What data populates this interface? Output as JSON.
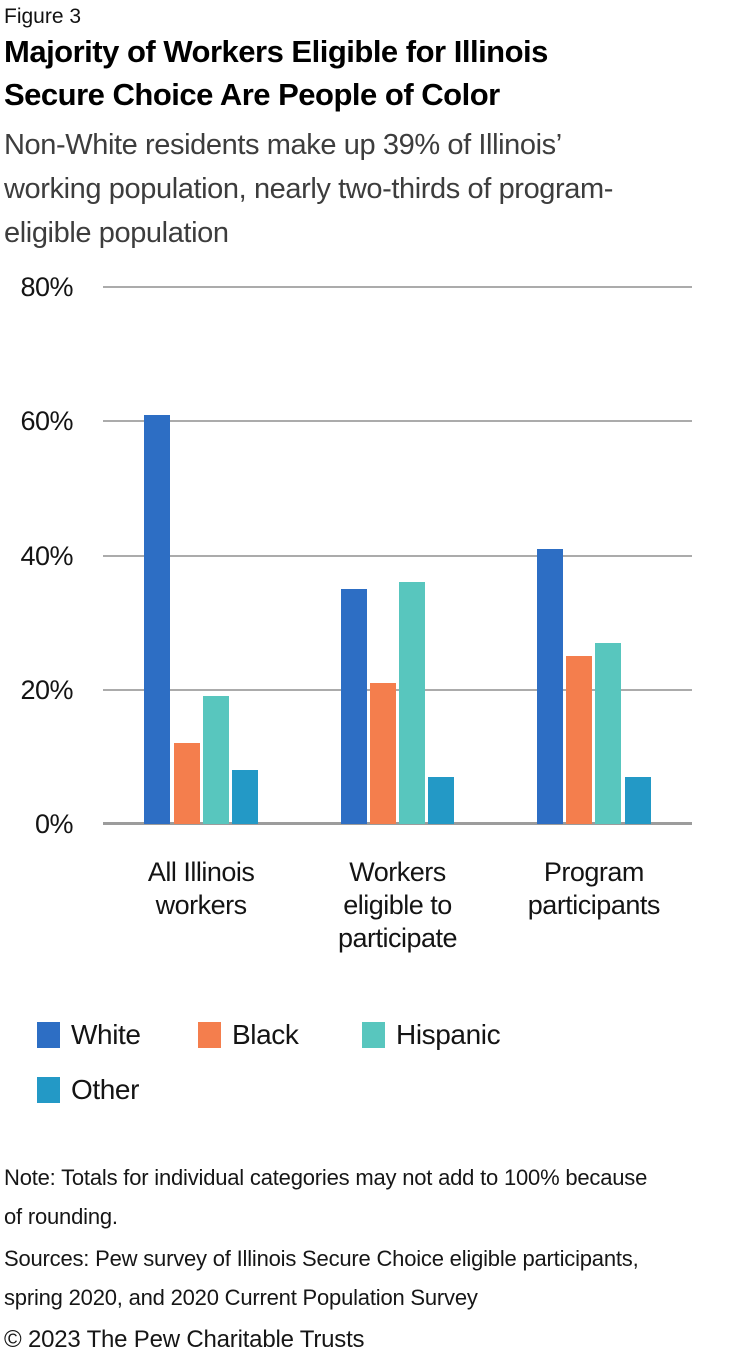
{
  "header": {
    "figure_label": "Figure 3",
    "title_lines": [
      "Majority of Workers Eligible for Illinois",
      "Secure Choice Are People of Color"
    ],
    "subtitle_lines": [
      "Non-White residents make up 39% of Illinois’",
      "working population, nearly two-thirds of program-",
      "eligible population"
    ]
  },
  "chart_data": {
    "type": "bar",
    "categories": [
      "All Illinois workers",
      "Workers eligible to participate",
      "Program participants"
    ],
    "category_label_lines": [
      [
        "All Illinois",
        "workers"
      ],
      [
        "Workers",
        "eligible to",
        "participate"
      ],
      [
        "Program",
        "participants"
      ]
    ],
    "series": [
      {
        "name": "White",
        "color": "#2d6ec4",
        "values": [
          61,
          35,
          41
        ]
      },
      {
        "name": "Black",
        "color": "#f47e4d",
        "values": [
          12,
          21,
          25
        ]
      },
      {
        "name": "Hispanic",
        "color": "#58c6be",
        "values": [
          19,
          36,
          27
        ]
      },
      {
        "name": "Other",
        "color": "#2399c6",
        "values": [
          8,
          7,
          7
        ]
      }
    ],
    "value_unit": "%",
    "y_axis": {
      "tick_labels": [
        "80%",
        "60%",
        "40%",
        "20%",
        "0%"
      ],
      "tick_values": [
        80,
        60,
        40,
        20,
        0
      ],
      "max": 80
    },
    "ylim": [
      0,
      80
    ],
    "grid": "horizontal",
    "grid_color": "#ababab",
    "baseline_color": "#9c9c9c",
    "legend_position": "bottom-left"
  },
  "legend": {
    "items": [
      {
        "label": "White",
        "color": "#2d6ec4"
      },
      {
        "label": "Black",
        "color": "#f47e4d"
      },
      {
        "label": "Hispanic",
        "color": "#58c6be"
      },
      {
        "label": "Other",
        "color": "#2399c6"
      }
    ]
  },
  "footer": {
    "note_lines": [
      "Note: Totals for individual categories may not add to 100% because",
      "of rounding."
    ],
    "sources_lines": [
      "Sources: Pew survey of Illinois Secure Choice eligible participants,",
      "spring 2020, and 2020 Current Population Survey"
    ],
    "copyright": "© 2023 The Pew Charitable Trusts"
  }
}
